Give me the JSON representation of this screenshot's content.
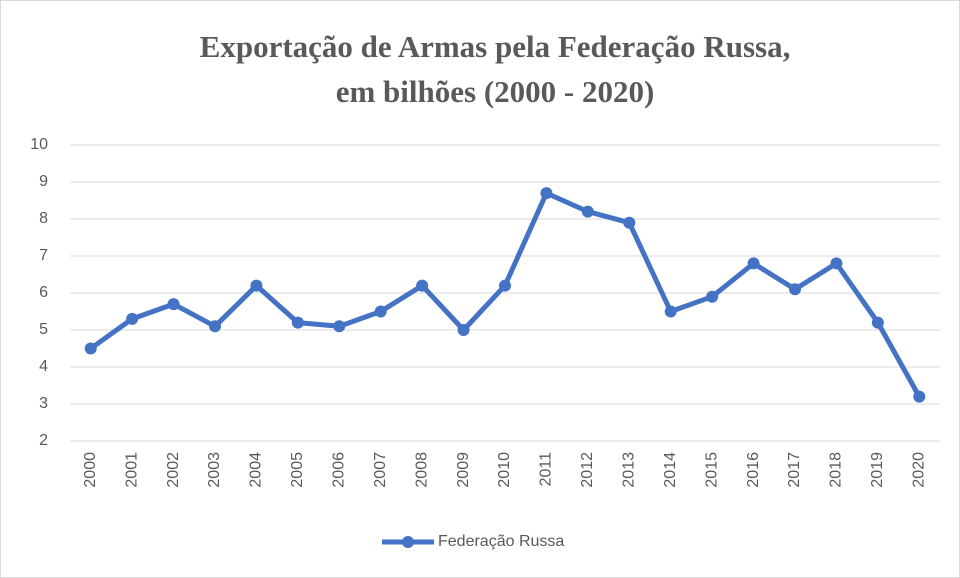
{
  "chart_data": {
    "type": "line",
    "title": [
      "Exportação de Armas pela Federação Russa,",
      "em bilhões (2000 - 2020)"
    ],
    "categories": [
      "2000",
      "2001",
      "2002",
      "2003",
      "2004",
      "2005",
      "2006",
      "2007",
      "2008",
      "2009",
      "2010",
      "2011",
      "2012",
      "2013",
      "2014",
      "2015",
      "2016",
      "2017",
      "2018",
      "2019",
      "2020"
    ],
    "series": [
      {
        "name": "Federação Russa",
        "color": "#4472c4",
        "values": [
          4.5,
          5.3,
          5.7,
          5.1,
          6.2,
          5.2,
          5.1,
          5.5,
          6.2,
          5.0,
          6.2,
          8.7,
          8.2,
          7.9,
          5.5,
          5.9,
          6.8,
          6.1,
          6.8,
          5.2,
          3.2
        ]
      }
    ],
    "ylim": [
      2,
      10
    ],
    "yticks": [
      2,
      3,
      4,
      5,
      6,
      7,
      8,
      9,
      10
    ],
    "grid": true,
    "legend": "bottom"
  }
}
